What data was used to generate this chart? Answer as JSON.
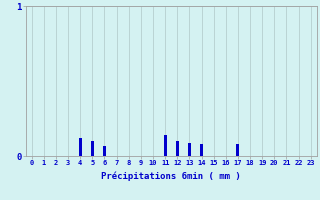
{
  "xlabel": "Précipitations 6min ( mm )",
  "hours": [
    0,
    1,
    2,
    3,
    4,
    5,
    6,
    7,
    8,
    9,
    10,
    11,
    12,
    13,
    14,
    15,
    16,
    17,
    18,
    19,
    20,
    21,
    22,
    23
  ],
  "values": [
    0,
    0,
    0,
    0,
    0.12,
    0.1,
    0.07,
    0,
    0,
    0,
    0,
    0.14,
    0.1,
    0.09,
    0.08,
    0,
    0,
    0.08,
    0,
    0,
    0,
    0,
    0,
    0
  ],
  "bar_color": "#0000cc",
  "bg_color": "#d4f2f2",
  "grid_color": "#b0c8c8",
  "axis_color": "#a0a0a0",
  "text_color": "#0000cc",
  "ylim": [
    0,
    1
  ],
  "xlim": [
    -0.5,
    23.5
  ]
}
